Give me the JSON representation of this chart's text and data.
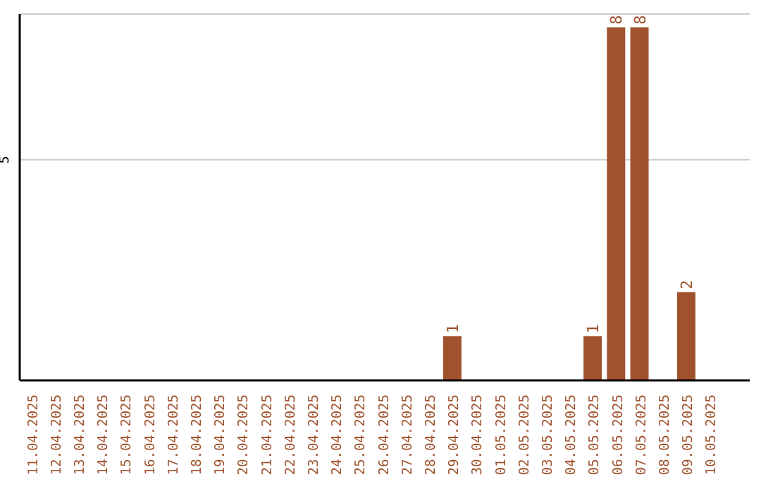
{
  "chart_data": {
    "type": "bar",
    "categories": [
      "11.04.2025",
      "12.04.2025",
      "13.04.2025",
      "14.04.2025",
      "15.04.2025",
      "16.04.2025",
      "17.04.2025",
      "18.04.2025",
      "19.04.2025",
      "20.04.2025",
      "21.04.2025",
      "22.04.2025",
      "23.04.2025",
      "24.04.2025",
      "25.04.2025",
      "26.04.2025",
      "27.04.2025",
      "28.04.2025",
      "29.04.2025",
      "30.04.2025",
      "01.05.2025",
      "02.05.2025",
      "03.05.2025",
      "04.05.2025",
      "05.05.2025",
      "06.05.2025",
      "07.05.2025",
      "08.05.2025",
      "09.05.2025",
      "10.05.2025"
    ],
    "values": [
      null,
      null,
      null,
      null,
      null,
      null,
      null,
      null,
      null,
      null,
      null,
      null,
      null,
      null,
      null,
      null,
      null,
      null,
      1,
      null,
      null,
      null,
      null,
      null,
      1,
      8,
      8,
      null,
      2,
      null
    ],
    "value_labels": [
      null,
      null,
      null,
      null,
      null,
      null,
      null,
      null,
      null,
      null,
      null,
      null,
      null,
      null,
      null,
      null,
      null,
      null,
      "1",
      null,
      null,
      null,
      null,
      null,
      "1",
      "8",
      "8",
      null,
      "2",
      null
    ],
    "color": "#a0522d",
    "ylim": [
      0,
      8.3
    ],
    "yticks": [
      5
    ],
    "grid": "y"
  }
}
